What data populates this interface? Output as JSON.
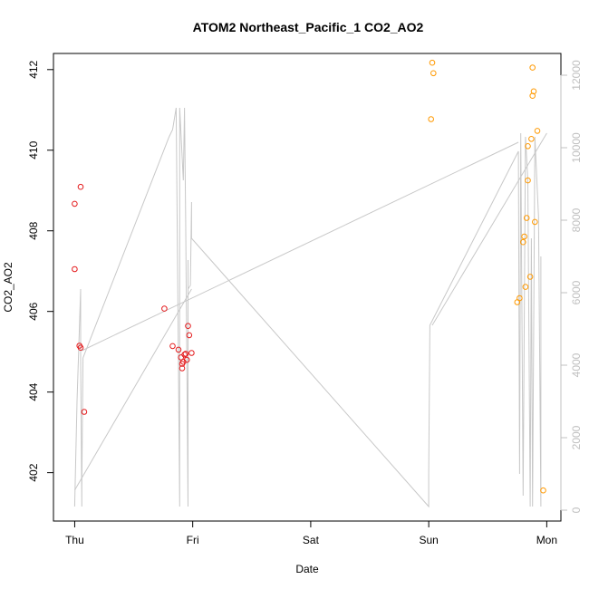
{
  "chart_data": {
    "type": "scatter",
    "title": "ATOM2 Northeast_Pacific_1 CO2_AO2",
    "xlabel": "Date",
    "ylabel": "CO2_AO2",
    "x_ticks": [
      "Thu",
      "Fri",
      "Sat",
      "Sun",
      "Mon"
    ],
    "y_ticks": [
      402,
      404,
      406,
      408,
      410,
      412
    ],
    "y2_ticks": [
      0,
      2000,
      4000,
      6000,
      8000,
      10000,
      12000
    ],
    "xlim": [
      -0.18,
      4.12
    ],
    "ylim": [
      400.8,
      412.4
    ],
    "y2lim": [
      -300,
      12600
    ],
    "colors": {
      "group1": "#e41a1c",
      "group2": "#ff9900",
      "line": "#c8c8c8",
      "right_axis": "#c0c0c0"
    },
    "series": [
      {
        "values": [
          [
            0.0,
            408.67
          ],
          [
            0.0,
            407.05
          ],
          [
            0.04,
            405.15
          ],
          [
            0.05,
            405.1
          ],
          [
            0.05,
            409.09
          ],
          [
            0.08,
            403.51
          ],
          [
            0.76,
            406.07
          ],
          [
            0.83,
            405.14
          ],
          [
            0.88,
            405.05
          ],
          [
            0.9,
            404.86
          ],
          [
            0.91,
            404.7
          ],
          [
            0.91,
            404.59
          ],
          [
            0.92,
            404.75
          ],
          [
            0.93,
            404.93
          ],
          [
            0.94,
            404.95
          ],
          [
            0.95,
            404.8
          ],
          [
            0.96,
            405.64
          ],
          [
            0.97,
            405.41
          ],
          [
            0.99,
            404.97
          ]
        ]
      },
      {
        "values": [
          [
            3.02,
            410.77
          ],
          [
            3.03,
            412.17
          ],
          [
            3.04,
            411.91
          ],
          [
            3.75,
            406.23
          ],
          [
            3.77,
            406.33
          ],
          [
            3.8,
            407.72
          ],
          [
            3.81,
            407.86
          ],
          [
            3.82,
            406.61
          ],
          [
            3.83,
            408.32
          ],
          [
            3.84,
            410.1
          ],
          [
            3.84,
            409.25
          ],
          [
            3.86,
            406.86
          ],
          [
            3.87,
            410.28
          ],
          [
            3.88,
            411.35
          ],
          [
            3.88,
            412.05
          ],
          [
            3.89,
            411.46
          ],
          [
            3.9,
            408.22
          ],
          [
            3.92,
            410.48
          ],
          [
            3.97,
            401.56
          ]
        ]
      },
      {
        "axis": "right",
        "type": "line",
        "values": [
          [
            0.0,
            100
          ],
          [
            0.02,
            3000
          ],
          [
            0.05,
            6100
          ],
          [
            0.05,
            4200
          ],
          [
            0.06,
            100
          ],
          [
            0.06,
            700
          ],
          [
            0.07,
            4200
          ],
          [
            0.8,
            10300
          ],
          [
            0.83,
            10500
          ],
          [
            0.86,
            11100
          ],
          [
            0.89,
            100
          ],
          [
            0.89,
            11100
          ],
          [
            0.92,
            9100
          ],
          [
            0.93,
            11100
          ],
          [
            0.94,
            8000
          ],
          [
            0.96,
            100
          ],
          [
            0.96,
            6900
          ],
          [
            0.96,
            6100
          ],
          [
            0.98,
            6200
          ],
          [
            0.99,
            8500
          ],
          [
            0.99,
            7500
          ],
          [
            3.0,
            100
          ],
          [
            3.0,
            1000
          ],
          [
            3.01,
            5100
          ],
          [
            3.76,
            9900
          ],
          [
            3.77,
            1000
          ],
          [
            3.78,
            10400
          ],
          [
            3.8,
            400
          ],
          [
            3.82,
            10300
          ],
          [
            3.84,
            9100
          ],
          [
            3.86,
            100
          ],
          [
            3.87,
            7500
          ],
          [
            3.88,
            100
          ],
          [
            3.9,
            10300
          ],
          [
            3.92,
            8800
          ],
          [
            3.93,
            8100
          ],
          [
            3.95,
            100
          ],
          [
            3.95,
            7000
          ]
        ]
      },
      {
        "axis": "right",
        "type": "line",
        "values": [
          [
            0.06,
            4400
          ],
          [
            3.76,
            10150
          ]
        ]
      },
      {
        "axis": "right",
        "type": "line",
        "values": [
          [
            0.0,
            550
          ],
          [
            0.99,
            6100
          ]
        ]
      },
      {
        "axis": "right",
        "type": "line",
        "values": [
          [
            3.03,
            5100
          ],
          [
            4.0,
            10400
          ]
        ]
      }
    ]
  }
}
